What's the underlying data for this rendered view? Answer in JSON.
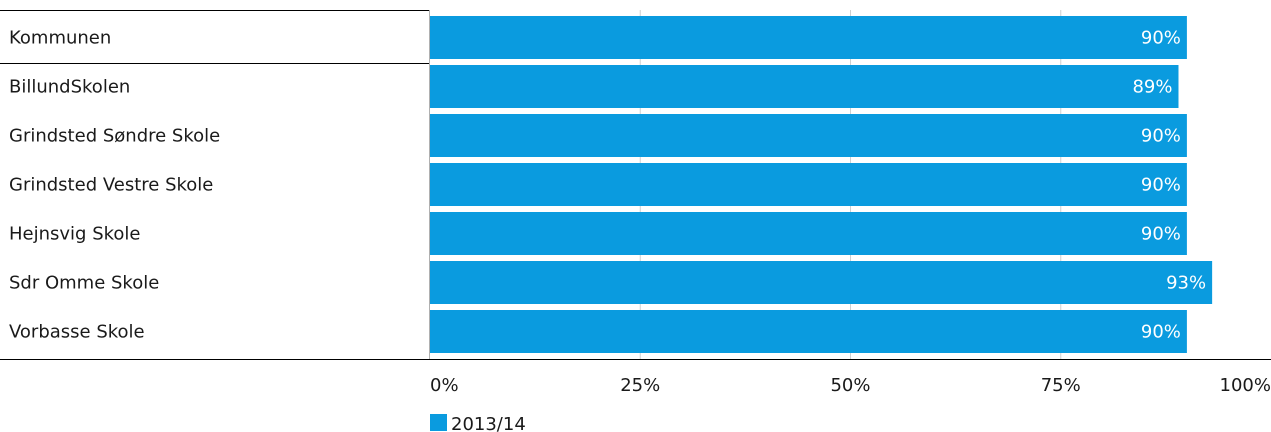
{
  "chart_data": {
    "type": "bar",
    "orientation": "horizontal",
    "categories": [
      "Kommunen",
      "BillundSkolen",
      "Grindsted Søndre Skole",
      "Grindsted Vestre Skole",
      "Hejnsvig Skole",
      "Sdr Omme Skole",
      "Vorbasse Skole"
    ],
    "series": [
      {
        "name": "2013/14",
        "values": [
          90,
          89,
          90,
          90,
          90,
          93,
          90
        ]
      }
    ],
    "value_labels": [
      "90%",
      "89%",
      "90%",
      "90%",
      "90%",
      "93%",
      "90%"
    ],
    "xlim": [
      0,
      100
    ],
    "xticks": [
      0,
      25,
      50,
      75,
      100
    ],
    "xtick_labels": [
      "0%",
      "25%",
      "50%",
      "75%",
      "100%"
    ],
    "grid": true,
    "legend_position": "bottom-left",
    "colors": {
      "bar": "#0a9bdf",
      "grid": "#d0d0d0",
      "axis": "#000000",
      "value_text": "#ffffff"
    }
  }
}
